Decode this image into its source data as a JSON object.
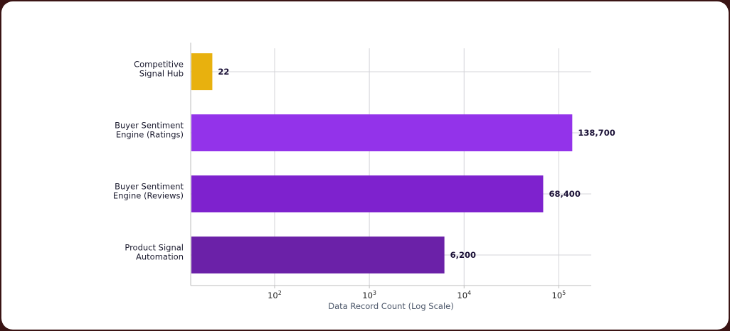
{
  "chart_data": {
    "type": "bar",
    "orientation": "horizontal",
    "categories": [
      [
        "Competitive",
        "Signal Hub"
      ],
      [
        "Buyer Sentiment",
        "Engine (Ratings)"
      ],
      [
        "Buyer Sentiment",
        "Engine (Reviews)"
      ],
      [
        "Product Signal",
        "Automation"
      ]
    ],
    "values": [
      22,
      138700,
      68400,
      6200
    ],
    "value_labels": [
      "22",
      "138,700",
      "68,400",
      "6,200"
    ],
    "bar_colors": [
      "#E8B10E",
      "#9333EA",
      "#7E22CE",
      "#6B21A8"
    ],
    "xscale": "log",
    "xlim": [
      13,
      220000
    ],
    "xticks": [
      100,
      1000,
      10000,
      100000
    ],
    "xtick_labels": [
      {
        "base": "10",
        "exp": "2"
      },
      {
        "base": "10",
        "exp": "3"
      },
      {
        "base": "10",
        "exp": "4"
      },
      {
        "base": "10",
        "exp": "5"
      }
    ],
    "xlabel": "Data Record Count (Log Scale)",
    "grid": true
  }
}
